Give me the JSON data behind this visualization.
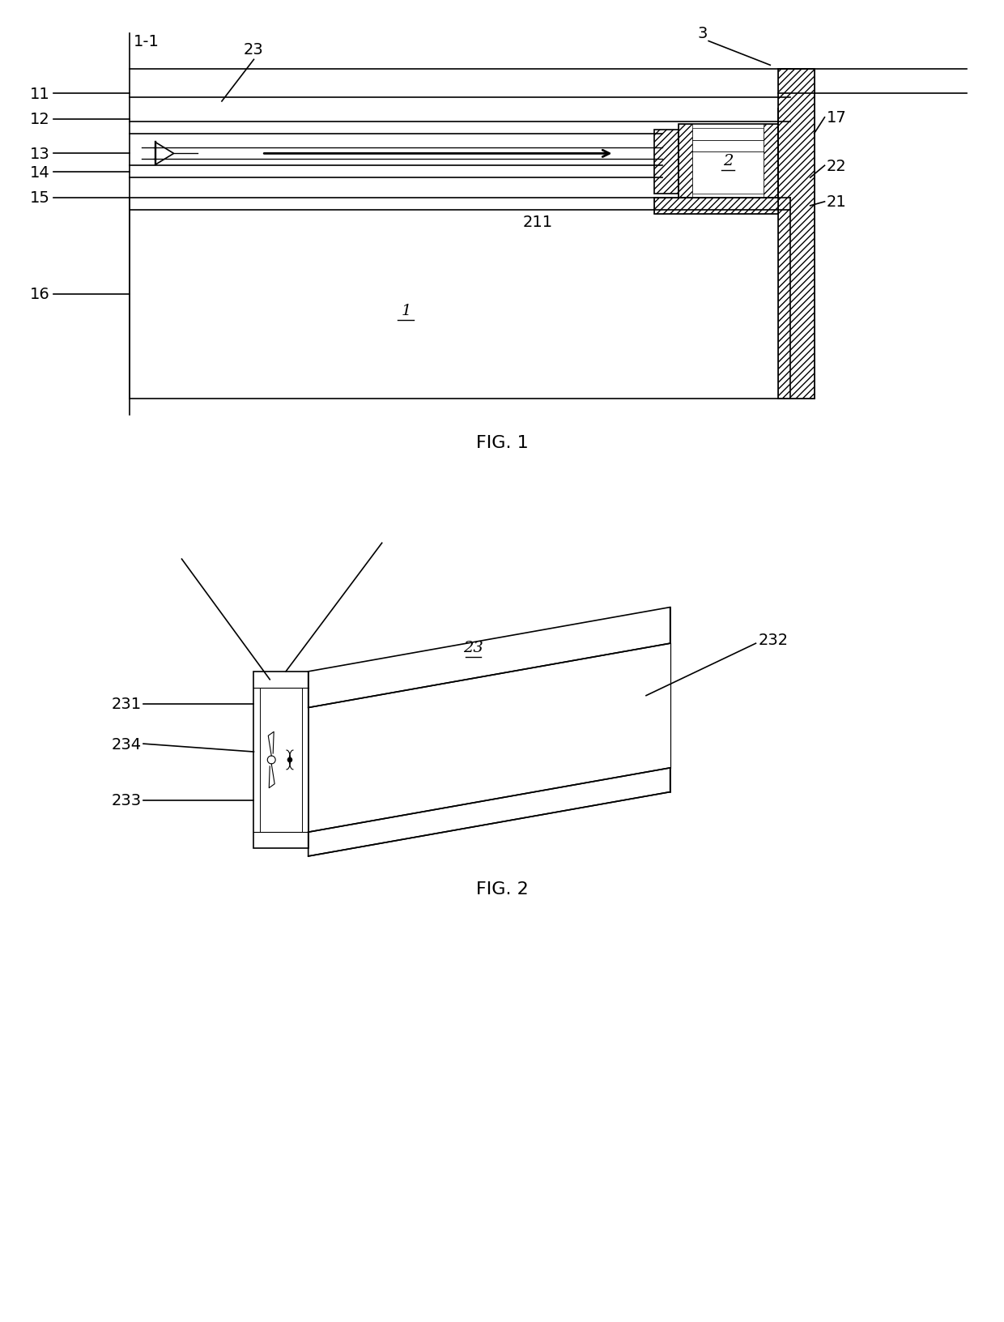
{
  "bg_color": "#ffffff",
  "lc": "#000000",
  "lw": 1.2,
  "fig1_title": "FIG. 1",
  "fig2_title": "FIG. 2"
}
